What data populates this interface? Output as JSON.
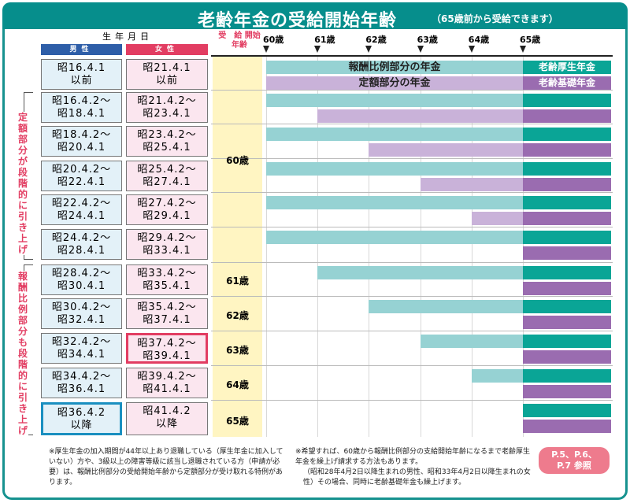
{
  "title": "老齢年金の受給開始年齢",
  "subtitle": "（65歳前から受給できます）",
  "header": {
    "dob": "生年月日",
    "male": "男性",
    "female": "女性",
    "start_age": "受　給 開始年齢"
  },
  "ages": [
    "60歳",
    "61歳",
    "62歳",
    "63歳",
    "64歳",
    "65歳"
  ],
  "bar_labels": {
    "teal": "報酬比例部分の年金",
    "purple": "定額部分の年金",
    "right_teal": "老齢厚生年金",
    "right_purple": "老齢基礎年金"
  },
  "rows": [
    {
      "male": [
        "昭16.4.1",
        "以前"
      ],
      "female": [
        "昭21.4.1",
        "以前"
      ],
      "earnings_start": 60,
      "flat_start": 60
    },
    {
      "male": [
        "昭16.4.2～",
        "昭18.4.1"
      ],
      "female": [
        "昭21.4.2～",
        "昭23.4.1"
      ],
      "earnings_start": 60,
      "flat_start": 61
    },
    {
      "male": [
        "昭18.4.2～",
        "昭20.4.1"
      ],
      "female": [
        "昭23.4.2～",
        "昭25.4.1"
      ],
      "earnings_start": 60,
      "flat_start": 62
    },
    {
      "male": [
        "昭20.4.2～",
        "昭22.4.1"
      ],
      "female": [
        "昭25.4.2～",
        "昭27.4.1"
      ],
      "earnings_start": 60,
      "flat_start": 63
    },
    {
      "male": [
        "昭22.4.2～",
        "昭24.4.1"
      ],
      "female": [
        "昭27.4.2～",
        "昭29.4.1"
      ],
      "earnings_start": 60,
      "flat_start": 64
    },
    {
      "male": [
        "昭24.4.2～",
        "昭28.4.1"
      ],
      "female": [
        "昭29.4.2～",
        "昭33.4.1"
      ],
      "earnings_start": 60,
      "flat_start": 65
    },
    {
      "male": [
        "昭28.4.2～",
        "昭30.4.1"
      ],
      "female": [
        "昭33.4.2～",
        "昭35.4.1"
      ],
      "earnings_start": 61,
      "flat_start": 65
    },
    {
      "male": [
        "昭30.4.2～",
        "昭32.4.1"
      ],
      "female": [
        "昭35.4.2～",
        "昭37.4.1"
      ],
      "earnings_start": 62,
      "flat_start": 65
    },
    {
      "male": [
        "昭32.4.2～",
        "昭34.4.1"
      ],
      "female": [
        "昭37.4.2～",
        "昭39.4.1"
      ],
      "earnings_start": 63,
      "flat_start": 65,
      "highlight": "female"
    },
    {
      "male": [
        "昭34.4.2～",
        "昭36.4.1"
      ],
      "female": [
        "昭39.4.2～",
        "昭41.4.1"
      ],
      "earnings_start": 64,
      "flat_start": 65
    },
    {
      "male": [
        "昭36.4.2",
        "以降"
      ],
      "female": [
        "昭41.4.2",
        "以降"
      ],
      "earnings_start": 65,
      "flat_start": 65,
      "highlight": "male"
    }
  ],
  "start_ages": {
    "group": "60歳",
    "r6": "61歳",
    "r7": "62歳",
    "r8": "63歳",
    "r9": "64歳",
    "r10": "65歳"
  },
  "side_labels": [
    "定額部分が段階的に引き上げ",
    "報酬比例部分も段階的に引き上げ"
  ],
  "notes": {
    "left": "※厚生年金の加入期間が44年以上あり退職している（厚生年金に加入していない）方や、3級以上の障害等級に該当し退職されている方（申請が必要）は、報酬比例部分の受給開始年齢から定額部分が受け取れる特例があります。",
    "right1": "※希望すれば、60歳から報酬比例部分の支給開始年齢になるまで老齢厚生年金を繰上げ請求する方法もあります。",
    "right2": "（昭和28年4月2日以降生まれの男性、昭和33年4月2日以降生まれの女性）その場合、同時に老齢基礎年金も繰上げます。"
  },
  "reference": [
    "P.5、P.6、",
    "P.7 参照"
  ],
  "colors": {
    "teal": "#068e8c",
    "male": "#2e5ea8",
    "female": "#e23d62"
  }
}
